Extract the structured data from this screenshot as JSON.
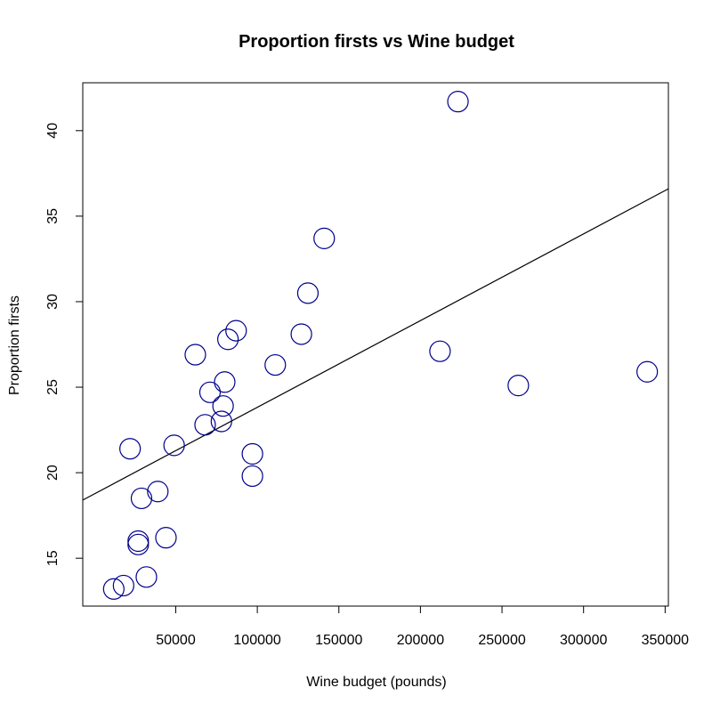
{
  "chart_data": {
    "type": "scatter",
    "title": "Proportion firsts vs Wine budget",
    "xlabel": "Wine budget (pounds)",
    "ylabel": "Proportion firsts",
    "xlim": [
      -7000,
      352000
    ],
    "ylim": [
      12.2,
      42.8
    ],
    "x_ticks": [
      50000,
      100000,
      150000,
      200000,
      250000,
      300000,
      350000
    ],
    "x_tick_labels": [
      "50000",
      "100000",
      "150000",
      "200000",
      "250000",
      "300000",
      "350000"
    ],
    "y_ticks": [
      15,
      20,
      25,
      30,
      35,
      40
    ],
    "y_tick_labels": [
      "15",
      "20",
      "25",
      "30",
      "35",
      "40"
    ],
    "grid": false,
    "point_color": "#00008B",
    "line_color": "#000000",
    "series": [
      {
        "points": [
          {
            "x": 223000,
            "y": 41.7
          },
          {
            "x": 141000,
            "y": 33.7
          },
          {
            "x": 131000,
            "y": 30.5
          },
          {
            "x": 87000,
            "y": 28.3
          },
          {
            "x": 82000,
            "y": 27.8
          },
          {
            "x": 127000,
            "y": 28.1
          },
          {
            "x": 62000,
            "y": 26.9
          },
          {
            "x": 111000,
            "y": 26.3
          },
          {
            "x": 212000,
            "y": 27.1
          },
          {
            "x": 339000,
            "y": 25.9
          },
          {
            "x": 260000,
            "y": 25.1
          },
          {
            "x": 80000,
            "y": 25.3
          },
          {
            "x": 71000,
            "y": 24.7
          },
          {
            "x": 79000,
            "y": 23.9
          },
          {
            "x": 68000,
            "y": 22.8
          },
          {
            "x": 78000,
            "y": 23.0
          },
          {
            "x": 49000,
            "y": 21.6
          },
          {
            "x": 22000,
            "y": 21.4
          },
          {
            "x": 97000,
            "y": 21.1
          },
          {
            "x": 97000,
            "y": 19.8
          },
          {
            "x": 39000,
            "y": 18.9
          },
          {
            "x": 29000,
            "y": 18.5
          },
          {
            "x": 44000,
            "y": 16.2
          },
          {
            "x": 27000,
            "y": 16.0
          },
          {
            "x": 27000,
            "y": 15.8
          },
          {
            "x": 32000,
            "y": 13.9
          },
          {
            "x": 18000,
            "y": 13.4
          },
          {
            "x": 12000,
            "y": 13.2
          }
        ]
      }
    ],
    "fit_line": {
      "x": [
        -7000,
        352000
      ],
      "y": [
        18.4,
        36.6
      ]
    }
  }
}
